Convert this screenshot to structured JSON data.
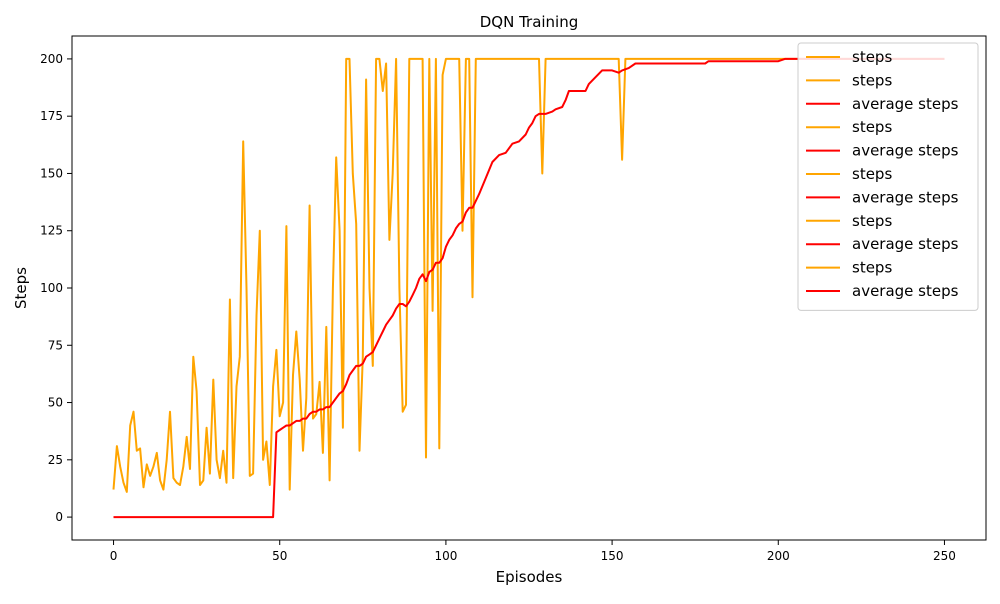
{
  "chart_data": {
    "type": "line",
    "title": "DQN Training",
    "xlabel": "Episodes",
    "ylabel": "Steps",
    "xlim": [
      -12.5,
      262.5
    ],
    "ylim": [
      -10,
      210
    ],
    "x_ticks": [
      0,
      50,
      100,
      150,
      200,
      250
    ],
    "y_ticks": [
      0,
      25,
      50,
      75,
      100,
      125,
      150,
      175,
      200
    ],
    "grid": false,
    "legend_position": "top-right",
    "legend": [
      {
        "label": "steps",
        "color": "#FFA500"
      },
      {
        "label": "steps",
        "color": "#FFA500"
      },
      {
        "label": "average steps",
        "color": "#FF0000"
      },
      {
        "label": "steps",
        "color": "#FFA500"
      },
      {
        "label": "average steps",
        "color": "#FF0000"
      },
      {
        "label": "steps",
        "color": "#FFA500"
      },
      {
        "label": "average steps",
        "color": "#FF0000"
      },
      {
        "label": "steps",
        "color": "#FFA500"
      },
      {
        "label": "average steps",
        "color": "#FF0000"
      },
      {
        "label": "steps",
        "color": "#FFA500"
      },
      {
        "label": "average steps",
        "color": "#FF0000"
      }
    ],
    "series": [
      {
        "name": "steps",
        "color": "#FFA500",
        "points": [
          [
            0,
            12
          ],
          [
            1,
            31
          ],
          [
            2,
            22
          ],
          [
            3,
            15
          ],
          [
            4,
            11
          ],
          [
            5,
            40
          ],
          [
            6,
            46
          ],
          [
            7,
            29
          ],
          [
            8,
            30
          ],
          [
            9,
            13
          ],
          [
            10,
            23
          ],
          [
            11,
            18
          ],
          [
            12,
            22
          ],
          [
            13,
            28
          ],
          [
            14,
            16
          ],
          [
            15,
            12
          ],
          [
            16,
            25
          ],
          [
            17,
            46
          ],
          [
            18,
            17
          ],
          [
            19,
            15
          ],
          [
            20,
            14
          ],
          [
            21,
            22
          ],
          [
            22,
            35
          ],
          [
            23,
            21
          ],
          [
            24,
            70
          ],
          [
            25,
            55
          ],
          [
            26,
            14
          ],
          [
            27,
            16
          ],
          [
            28,
            39
          ],
          [
            29,
            19
          ],
          [
            30,
            60
          ],
          [
            31,
            25
          ],
          [
            32,
            17
          ],
          [
            33,
            29
          ],
          [
            34,
            15
          ],
          [
            35,
            95
          ],
          [
            36,
            17
          ],
          [
            37,
            57
          ],
          [
            38,
            70
          ],
          [
            39,
            164
          ],
          [
            40,
            100
          ],
          [
            41,
            18
          ],
          [
            42,
            19
          ],
          [
            43,
            88
          ],
          [
            44,
            125
          ],
          [
            45,
            25
          ],
          [
            46,
            33
          ],
          [
            47,
            14
          ],
          [
            48,
            57
          ],
          [
            49,
            73
          ],
          [
            50,
            44
          ],
          [
            51,
            50
          ],
          [
            52,
            127
          ],
          [
            53,
            12
          ],
          [
            54,
            62
          ],
          [
            55,
            81
          ],
          [
            56,
            60
          ],
          [
            57,
            29
          ],
          [
            58,
            52
          ],
          [
            59,
            136
          ],
          [
            60,
            43
          ],
          [
            61,
            45
          ],
          [
            62,
            59
          ],
          [
            63,
            28
          ],
          [
            64,
            83
          ],
          [
            65,
            16
          ],
          [
            66,
            100
          ],
          [
            67,
            157
          ],
          [
            68,
            125
          ],
          [
            69,
            39
          ],
          [
            70,
            200
          ],
          [
            71,
            200
          ],
          [
            72,
            150
          ],
          [
            73,
            128
          ],
          [
            74,
            29
          ],
          [
            75,
            70
          ],
          [
            76,
            191
          ],
          [
            77,
            100
          ],
          [
            78,
            66
          ],
          [
            79,
            200
          ],
          [
            80,
            200
          ],
          [
            81,
            186
          ],
          [
            82,
            198
          ],
          [
            83,
            121
          ],
          [
            84,
            150
          ],
          [
            85,
            200
          ],
          [
            86,
            100
          ],
          [
            87,
            46
          ],
          [
            88,
            49
          ],
          [
            89,
            200
          ],
          [
            90,
            200
          ],
          [
            91,
            200
          ],
          [
            92,
            200
          ],
          [
            93,
            200
          ],
          [
            94,
            26
          ],
          [
            95,
            200
          ],
          [
            96,
            90
          ],
          [
            97,
            200
          ],
          [
            98,
            30
          ],
          [
            99,
            193
          ],
          [
            100,
            200
          ],
          [
            101,
            200
          ],
          [
            102,
            200
          ],
          [
            103,
            200
          ],
          [
            104,
            200
          ],
          [
            105,
            125
          ],
          [
            106,
            200
          ],
          [
            107,
            200
          ],
          [
            108,
            96
          ],
          [
            109,
            200
          ],
          [
            110,
            200
          ],
          [
            115,
            200
          ],
          [
            120,
            200
          ],
          [
            125,
            200
          ],
          [
            128,
            200
          ],
          [
            129,
            150
          ],
          [
            130,
            200
          ],
          [
            135,
            200
          ],
          [
            140,
            200
          ],
          [
            145,
            200
          ],
          [
            150,
            200
          ],
          [
            152,
            200
          ],
          [
            153,
            156
          ],
          [
            154,
            200
          ],
          [
            160,
            200
          ],
          [
            170,
            200
          ],
          [
            180,
            200
          ],
          [
            190,
            200
          ],
          [
            200,
            200
          ],
          [
            210,
            200
          ],
          [
            220,
            200
          ],
          [
            230,
            200
          ],
          [
            240,
            200
          ],
          [
            250,
            200
          ]
        ]
      },
      {
        "name": "average steps",
        "color": "#FF0000",
        "points": [
          [
            0,
            0
          ],
          [
            10,
            0
          ],
          [
            20,
            0
          ],
          [
            30,
            0
          ],
          [
            40,
            0
          ],
          [
            48,
            0
          ],
          [
            49,
            37
          ],
          [
            50,
            38
          ],
          [
            51,
            39
          ],
          [
            52,
            40
          ],
          [
            53,
            40
          ],
          [
            54,
            41
          ],
          [
            55,
            42
          ],
          [
            56,
            42
          ],
          [
            57,
            43
          ],
          [
            58,
            43
          ],
          [
            59,
            45
          ],
          [
            60,
            46
          ],
          [
            61,
            46
          ],
          [
            62,
            47
          ],
          [
            63,
            47
          ],
          [
            64,
            48
          ],
          [
            65,
            48
          ],
          [
            66,
            50
          ],
          [
            67,
            52
          ],
          [
            68,
            54
          ],
          [
            69,
            55
          ],
          [
            70,
            58
          ],
          [
            71,
            62
          ],
          [
            72,
            64
          ],
          [
            73,
            66
          ],
          [
            74,
            66
          ],
          [
            75,
            67
          ],
          [
            76,
            70
          ],
          [
            77,
            71
          ],
          [
            78,
            72
          ],
          [
            79,
            75
          ],
          [
            80,
            78
          ],
          [
            81,
            81
          ],
          [
            82,
            84
          ],
          [
            83,
            86
          ],
          [
            84,
            88
          ],
          [
            85,
            91
          ],
          [
            86,
            93
          ],
          [
            87,
            93
          ],
          [
            88,
            92
          ],
          [
            89,
            94
          ],
          [
            90,
            97
          ],
          [
            91,
            100
          ],
          [
            92,
            104
          ],
          [
            93,
            106
          ],
          [
            94,
            103
          ],
          [
            95,
            107
          ],
          [
            96,
            108
          ],
          [
            97,
            111
          ],
          [
            98,
            111
          ],
          [
            99,
            113
          ],
          [
            100,
            118
          ],
          [
            101,
            121
          ],
          [
            102,
            123
          ],
          [
            103,
            126
          ],
          [
            104,
            128
          ],
          [
            105,
            129
          ],
          [
            106,
            133
          ],
          [
            107,
            135
          ],
          [
            108,
            135
          ],
          [
            109,
            138
          ],
          [
            110,
            141
          ],
          [
            112,
            148
          ],
          [
            114,
            155
          ],
          [
            116,
            158
          ],
          [
            118,
            159
          ],
          [
            120,
            163
          ],
          [
            122,
            164
          ],
          [
            124,
            167
          ],
          [
            125,
            170
          ],
          [
            126,
            172
          ],
          [
            127,
            175
          ],
          [
            128,
            176
          ],
          [
            130,
            176
          ],
          [
            132,
            177
          ],
          [
            133,
            178
          ],
          [
            135,
            179
          ],
          [
            136,
            182
          ],
          [
            137,
            186
          ],
          [
            140,
            186
          ],
          [
            142,
            186
          ],
          [
            143,
            189
          ],
          [
            145,
            192
          ],
          [
            147,
            195
          ],
          [
            150,
            195
          ],
          [
            152,
            194
          ],
          [
            153,
            195
          ],
          [
            155,
            196
          ],
          [
            157,
            198
          ],
          [
            160,
            198
          ],
          [
            170,
            198
          ],
          [
            178,
            198
          ],
          [
            179,
            199
          ],
          [
            185,
            199
          ],
          [
            190,
            199
          ],
          [
            195,
            199
          ],
          [
            200,
            199
          ],
          [
            202,
            200
          ],
          [
            205,
            200
          ],
          [
            210,
            200
          ],
          [
            220,
            200
          ],
          [
            230,
            200
          ],
          [
            240,
            200
          ],
          [
            250,
            200
          ]
        ]
      }
    ]
  }
}
